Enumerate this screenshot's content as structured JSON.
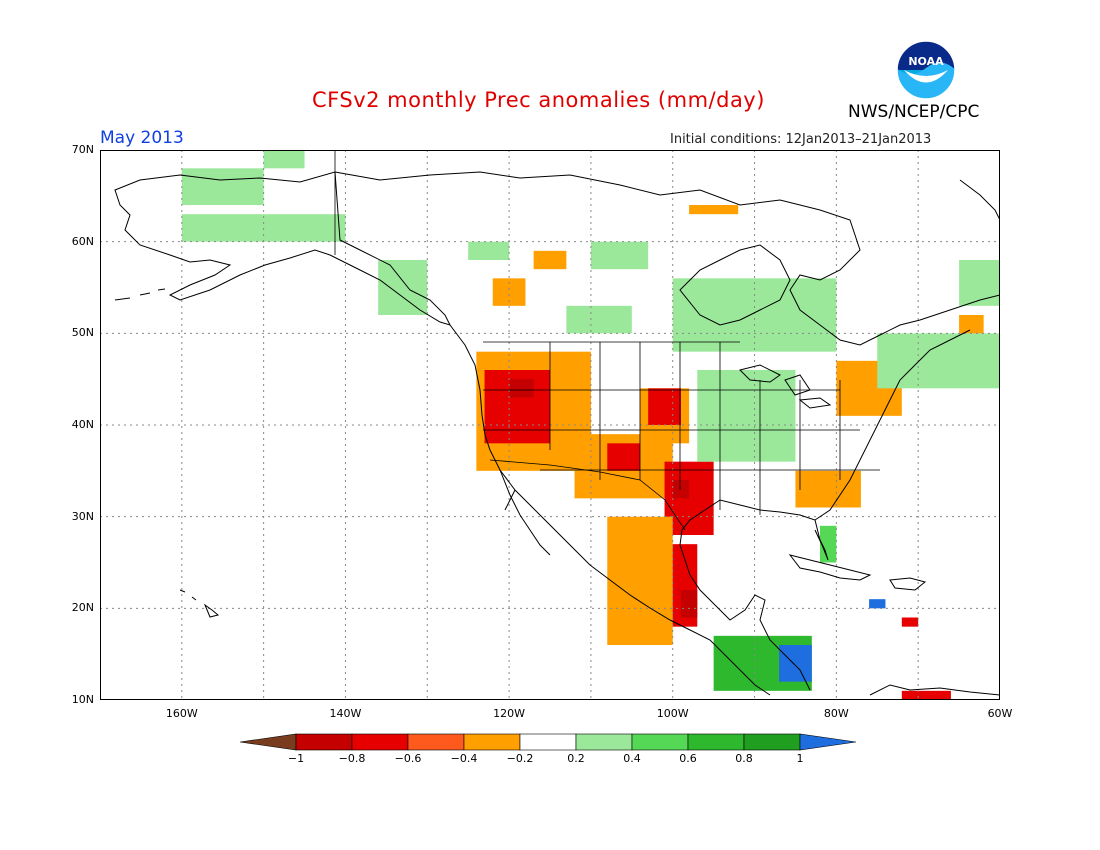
{
  "title": "CFSv2 monthly Prec anomalies (mm/day)",
  "agency": "NWS/NCEP/CPC",
  "logo_text": "NOAA",
  "month_label": "May 2013",
  "initial_conditions": "Initial conditions: 12Jan2013–21Jan2013",
  "map": {
    "lon_range": [
      -170,
      -60
    ],
    "lat_range": [
      10,
      70
    ],
    "grid": "dotted",
    "lat_labels": [
      "70N",
      "60N",
      "50N",
      "40N",
      "30N",
      "20N",
      "10N"
    ],
    "lon_labels": [
      "160W",
      "140W",
      "120W",
      "100W",
      "80W",
      "60W"
    ],
    "background": "#ffffff",
    "coastline_color": "#000000"
  },
  "colorbar": {
    "levels": [
      "−1",
      "−0.8",
      "−0.6",
      "−0.4",
      "−0.2",
      "0.2",
      "0.4",
      "0.6",
      "0.8",
      "1"
    ],
    "colors": [
      "#7a3c1e",
      "#c40000",
      "#e60000",
      "#ff5a1e",
      "#ff9f00",
      "#ffffff",
      "#9be89b",
      "#55d855",
      "#2eb82e",
      "#1f9e1f",
      "#1e6ee0"
    ]
  },
  "anomaly_regions": [
    {
      "name": "alaska-north-green",
      "level": 0.3,
      "lon": [
        -160,
        -150
      ],
      "lat": [
        64,
        68
      ]
    },
    {
      "name": "yukon-green",
      "level": 0.3,
      "lon": [
        -150,
        -145
      ],
      "lat": [
        68,
        70
      ]
    },
    {
      "name": "alaska-south-green",
      "level": 0.3,
      "lon": [
        -160,
        -140
      ],
      "lat": [
        60,
        63
      ]
    },
    {
      "name": "pacific-nw-coast-green",
      "level": 0.3,
      "lon": [
        -136,
        -130
      ],
      "lat": [
        52,
        58
      ]
    },
    {
      "name": "bc-green",
      "level": 0.3,
      "lon": [
        -125,
        -120
      ],
      "lat": [
        58,
        60
      ]
    },
    {
      "name": "bc-orange",
      "level": -0.3,
      "lon": [
        -122,
        -118
      ],
      "lat": [
        53,
        56
      ]
    },
    {
      "name": "yukon-orange",
      "level": -0.3,
      "lon": [
        -117,
        -113
      ],
      "lat": [
        57,
        59
      ]
    },
    {
      "name": "nwt-green",
      "level": 0.3,
      "lon": [
        -110,
        -103
      ],
      "lat": [
        57,
        60
      ]
    },
    {
      "name": "nunavut-orange",
      "level": -0.3,
      "lon": [
        -98,
        -92
      ],
      "lat": [
        63,
        64
      ]
    },
    {
      "name": "hudson-green",
      "level": 0.3,
      "lon": [
        -100,
        -80
      ],
      "lat": [
        48,
        56
      ]
    },
    {
      "name": "prairie-green",
      "level": 0.3,
      "lon": [
        -113,
        -105
      ],
      "lat": [
        50,
        53
      ]
    },
    {
      "name": "west-us-orange",
      "level": -0.3,
      "lon": [
        -124,
        -110
      ],
      "lat": [
        35,
        48
      ]
    },
    {
      "name": "west-us-red",
      "level": -0.6,
      "lon": [
        -123,
        -115
      ],
      "lat": [
        38,
        46
      ]
    },
    {
      "name": "west-us-darkred",
      "level": -0.8,
      "lon": [
        -120,
        -117
      ],
      "lat": [
        43,
        45
      ]
    },
    {
      "name": "southwest-orange",
      "level": -0.3,
      "lon": [
        -112,
        -100
      ],
      "lat": [
        32,
        39
      ]
    },
    {
      "name": "southwest-red",
      "level": -0.6,
      "lon": [
        -108,
        -104
      ],
      "lat": [
        35,
        38
      ]
    },
    {
      "name": "plains-orange",
      "level": -0.3,
      "lon": [
        -104,
        -98
      ],
      "lat": [
        38,
        44
      ]
    },
    {
      "name": "plains-red",
      "level": -0.6,
      "lon": [
        -103,
        -99
      ],
      "lat": [
        40,
        44
      ]
    },
    {
      "name": "texas-red",
      "level": -0.6,
      "lon": [
        -101,
        -95
      ],
      "lat": [
        28,
        36
      ]
    },
    {
      "name": "texas-darkred",
      "level": -0.8,
      "lon": [
        -100,
        -98
      ],
      "lat": [
        32,
        34
      ]
    },
    {
      "name": "mexico-coast-red",
      "level": -0.6,
      "lon": [
        -101,
        -97
      ],
      "lat": [
        18,
        27
      ]
    },
    {
      "name": "mexico-darkred",
      "level": -0.8,
      "lon": [
        -99,
        -97
      ],
      "lat": [
        19,
        22
      ]
    },
    {
      "name": "mexico-orange",
      "level": -0.3,
      "lon": [
        -108,
        -100
      ],
      "lat": [
        16,
        30
      ]
    },
    {
      "name": "midwest-green",
      "level": 0.3,
      "lon": [
        -97,
        -85
      ],
      "lat": [
        36,
        46
      ]
    },
    {
      "name": "southeast-orange",
      "level": -0.3,
      "lon": [
        -85,
        -77
      ],
      "lat": [
        31,
        35
      ]
    },
    {
      "name": "florida-green",
      "level": 0.5,
      "lon": [
        -82,
        -80
      ],
      "lat": [
        25,
        29
      ]
    },
    {
      "name": "great-lakes-orange",
      "level": -0.3,
      "lon": [
        -80,
        -72
      ],
      "lat": [
        41,
        47
      ]
    },
    {
      "name": "ne-canada-green",
      "level": 0.3,
      "lon": [
        -75,
        -60
      ],
      "lat": [
        44,
        50
      ]
    },
    {
      "name": "labrador-orange",
      "level": -0.3,
      "lon": [
        -65,
        -62
      ],
      "lat": [
        50,
        52
      ]
    },
    {
      "name": "central-america-green",
      "level": 0.7,
      "lon": [
        -95,
        -83
      ],
      "lat": [
        11,
        17
      ]
    },
    {
      "name": "central-america-blue",
      "level": 1.0,
      "lon": [
        -87,
        -83
      ],
      "lat": [
        12,
        16
      ]
    },
    {
      "name": "caribbean-blue",
      "level": 1.0,
      "lon": [
        -76,
        -74
      ],
      "lat": [
        20,
        21
      ]
    },
    {
      "name": "hispaniola-red",
      "level": -0.6,
      "lon": [
        -72,
        -70
      ],
      "lat": [
        18,
        19
      ]
    },
    {
      "name": "venezuela-mixed",
      "level": -0.6,
      "lon": [
        -72,
        -66
      ],
      "lat": [
        10,
        11
      ]
    },
    {
      "name": "greenland-green",
      "level": 0.3,
      "lon": [
        -65,
        -60
      ],
      "lat": [
        53,
        58
      ]
    }
  ]
}
